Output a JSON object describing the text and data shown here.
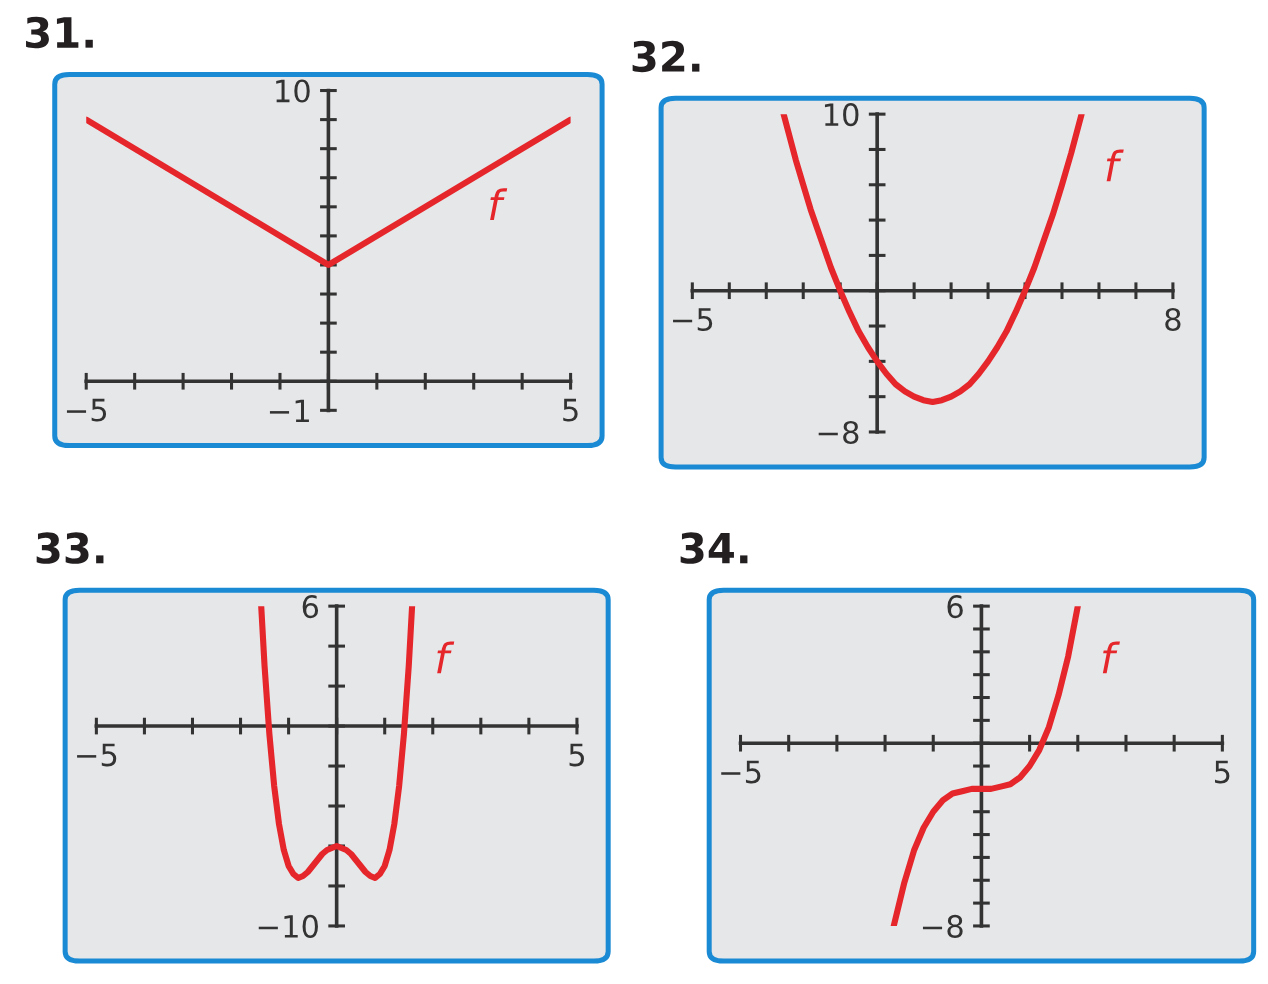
{
  "chart_data": [
    {
      "type": "line",
      "title": "31.",
      "legend": false,
      "grid": false,
      "marker": "none",
      "line_style": "solid",
      "xlim": [
        -5,
        5
      ],
      "ylim": [
        -1,
        10
      ],
      "xticks": [
        {
          "value": -5,
          "label": "−5"
        },
        {
          "value": -4,
          "label": null
        },
        {
          "value": -3,
          "label": null
        },
        {
          "value": -2,
          "label": null
        },
        {
          "value": -1,
          "label": null
        },
        {
          "value": 0,
          "label": null
        },
        {
          "value": 1,
          "label": null
        },
        {
          "value": 2,
          "label": null
        },
        {
          "value": 3,
          "label": null
        },
        {
          "value": 4,
          "label": null
        },
        {
          "value": 5,
          "label": "5"
        }
      ],
      "yticks": [
        {
          "value": -1,
          "label": "−1"
        },
        {
          "value": 0,
          "label": null
        },
        {
          "value": 1,
          "label": null
        },
        {
          "value": 2,
          "label": null
        },
        {
          "value": 3,
          "label": null
        },
        {
          "value": 4,
          "label": null
        },
        {
          "value": 5,
          "label": null
        },
        {
          "value": 6,
          "label": null
        },
        {
          "value": 7,
          "label": null
        },
        {
          "value": 8,
          "label": null
        },
        {
          "value": 9,
          "label": null
        },
        {
          "value": 10,
          "label": "10"
        }
      ],
      "series": [
        {
          "name": "f",
          "color": "#e5262b",
          "x": [
            -5,
            0,
            5
          ],
          "values": [
            9,
            4,
            9
          ]
        }
      ]
    },
    {
      "type": "line",
      "title": "32.",
      "legend": false,
      "grid": false,
      "marker": "none",
      "line_style": "solid",
      "xlim": [
        -5,
        8
      ],
      "ylim": [
        -8,
        10
      ],
      "xticks": [
        {
          "value": -5,
          "label": "−5"
        },
        {
          "value": -4,
          "label": null
        },
        {
          "value": -3,
          "label": null
        },
        {
          "value": -2,
          "label": null
        },
        {
          "value": -1,
          "label": null
        },
        {
          "value": 0,
          "label": null
        },
        {
          "value": 1,
          "label": null
        },
        {
          "value": 2,
          "label": null
        },
        {
          "value": 3,
          "label": null
        },
        {
          "value": 4,
          "label": null
        },
        {
          "value": 5,
          "label": null
        },
        {
          "value": 6,
          "label": null
        },
        {
          "value": 7,
          "label": null
        },
        {
          "value": 8,
          "label": "8"
        }
      ],
      "yticks": [
        {
          "value": -8,
          "label": "−8"
        },
        {
          "value": -6,
          "label": null
        },
        {
          "value": -4,
          "label": null
        },
        {
          "value": -2,
          "label": null
        },
        {
          "value": 0,
          "label": null
        },
        {
          "value": 2,
          "label": null
        },
        {
          "value": 4,
          "label": null
        },
        {
          "value": 6,
          "label": null
        },
        {
          "value": 8,
          "label": null
        },
        {
          "value": 10,
          "label": "10"
        }
      ],
      "series": [
        {
          "name": "f",
          "color": "#e5262b",
          "x": [
            -2.53,
            -2.2,
            -2.0,
            -1.8,
            -1.5,
            -1.25,
            -1.0,
            -0.75,
            -0.5,
            -0.25,
            0,
            0.25,
            0.5,
            0.75,
            1.0,
            1.25,
            1.5,
            1.75,
            2.0,
            2.25,
            2.5,
            2.75,
            3.0,
            3.25,
            3.5,
            3.75,
            4.0,
            4.25,
            4.5,
            4.75,
            5.0,
            5.25,
            5.53
          ],
          "values": [
            10.0,
            7.4,
            6.0,
            4.6,
            2.8,
            1.3,
            0,
            -1.2,
            -2.3,
            -3.2,
            -4.0,
            -4.7,
            -5.3,
            -5.7,
            -6.0,
            -6.2,
            -6.3,
            -6.2,
            -6.0,
            -5.7,
            -5.3,
            -4.7,
            -4.0,
            -3.2,
            -2.3,
            -1.2,
            0,
            1.3,
            2.8,
            4.3,
            6.0,
            7.8,
            10.0
          ]
        }
      ]
    },
    {
      "type": "line",
      "title": "33.",
      "legend": false,
      "grid": false,
      "marker": "none",
      "line_style": "solid",
      "xlim": [
        -5,
        5
      ],
      "ylim": [
        -10,
        6
      ],
      "xticks": [
        {
          "value": -5,
          "label": "−5"
        },
        {
          "value": -4,
          "label": null
        },
        {
          "value": -3,
          "label": null
        },
        {
          "value": -2,
          "label": null
        },
        {
          "value": -1,
          "label": null
        },
        {
          "value": 0,
          "label": null
        },
        {
          "value": 1,
          "label": null
        },
        {
          "value": 2,
          "label": null
        },
        {
          "value": 3,
          "label": null
        },
        {
          "value": 4,
          "label": null
        },
        {
          "value": 5,
          "label": "5"
        }
      ],
      "yticks": [
        {
          "value": -10,
          "label": "−10"
        },
        {
          "value": -8,
          "label": null
        },
        {
          "value": -6,
          "label": null
        },
        {
          "value": -4,
          "label": null
        },
        {
          "value": -2,
          "label": null
        },
        {
          "value": 0,
          "label": null
        },
        {
          "value": 2,
          "label": null
        },
        {
          "value": 4,
          "label": null
        },
        {
          "value": 6,
          "label": "6"
        }
      ],
      "series": [
        {
          "name": "f",
          "color": "#e5262b",
          "x": [
            -1.57,
            -1.5,
            -1.4,
            -1.3,
            -1.2,
            -1.1,
            -1.0,
            -0.9,
            -0.8,
            -0.7,
            -0.6,
            -0.5,
            -0.4,
            -0.3,
            -0.2,
            -0.1,
            0,
            0.1,
            0.2,
            0.3,
            0.4,
            0.5,
            0.6,
            0.7,
            0.8,
            0.9,
            1.0,
            1.1,
            1.2,
            1.3,
            1.4,
            1.5,
            1.57
          ],
          "values": [
            6.0,
            3.0,
            -0.4,
            -3.0,
            -4.9,
            -6.2,
            -7.0,
            -7.4,
            -7.6,
            -7.5,
            -7.3,
            -7.0,
            -6.7,
            -6.4,
            -6.2,
            -6.1,
            -6.0,
            -6.1,
            -6.2,
            -6.4,
            -6.7,
            -7.0,
            -7.3,
            -7.5,
            -7.6,
            -7.4,
            -7.0,
            -6.2,
            -4.9,
            -3.0,
            -0.4,
            3.0,
            6.0
          ]
        }
      ]
    },
    {
      "type": "line",
      "title": "34.",
      "legend": false,
      "grid": false,
      "marker": "none",
      "line_style": "solid",
      "xlim": [
        -5,
        5
      ],
      "ylim": [
        -8,
        6
      ],
      "xticks": [
        {
          "value": -5,
          "label": "−5"
        },
        {
          "value": -4,
          "label": null
        },
        {
          "value": -3,
          "label": null
        },
        {
          "value": -2,
          "label": null
        },
        {
          "value": -1,
          "label": null
        },
        {
          "value": 0,
          "label": null
        },
        {
          "value": 1,
          "label": null
        },
        {
          "value": 2,
          "label": null
        },
        {
          "value": 3,
          "label": null
        },
        {
          "value": 4,
          "label": null
        },
        {
          "value": 5,
          "label": "5"
        }
      ],
      "yticks": [
        {
          "value": -8,
          "label": "−8"
        },
        {
          "value": -7,
          "label": null
        },
        {
          "value": -6,
          "label": null
        },
        {
          "value": -5,
          "label": null
        },
        {
          "value": -4,
          "label": null
        },
        {
          "value": -3,
          "label": null
        },
        {
          "value": -2,
          "label": null
        },
        {
          "value": -1,
          "label": null
        },
        {
          "value": 0,
          "label": null
        },
        {
          "value": 1,
          "label": null
        },
        {
          "value": 2,
          "label": null
        },
        {
          "value": 3,
          "label": null
        },
        {
          "value": 4,
          "label": null
        },
        {
          "value": 5,
          "label": null
        },
        {
          "value": 6,
          "label": "6"
        }
      ],
      "series": [
        {
          "name": "f",
          "color": "#e5262b",
          "x": [
            -1.82,
            -1.6,
            -1.4,
            -1.2,
            -1.0,
            -0.8,
            -0.6,
            -0.4,
            -0.2,
            0,
            0.2,
            0.4,
            0.6,
            0.8,
            1.0,
            1.2,
            1.4,
            1.6,
            1.8,
            2.0
          ],
          "values": [
            -8.0,
            -6.1,
            -4.7,
            -3.7,
            -3.0,
            -2.5,
            -2.2,
            -2.1,
            -2.0,
            -2.0,
            -2.0,
            -1.9,
            -1.8,
            -1.5,
            -1.0,
            -0.3,
            0.7,
            2.1,
            3.8,
            6.0
          ]
        }
      ]
    }
  ]
}
